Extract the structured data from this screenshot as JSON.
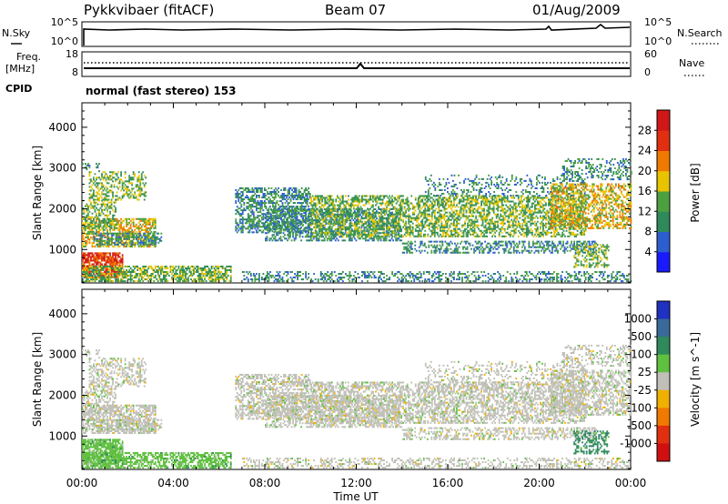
{
  "header": {
    "radar": "Pykkvibaer (fitACF)",
    "beam": "Beam 07",
    "date": "01/Aug/2009"
  },
  "aux_panels": {
    "nsky_label": "N.Sky",
    "nsearch_label": "N.Search",
    "noise_ticks": [
      "10^5",
      "10^0"
    ],
    "freq_label_1": "Freq.",
    "freq_label_2": "[MHz]",
    "freq_ticks": [
      "18",
      "8"
    ],
    "nave_label": "Nave",
    "nave_ticks": [
      "60",
      "0"
    ],
    "cpid_label": "CPID",
    "cpid_text": "normal (fast stereo) 153"
  },
  "chart_data": [
    {
      "type": "heatmap",
      "title": "",
      "xlabel": "Time UT",
      "ylabel": "Slant Range [km]",
      "x_ticks": [
        "00:00",
        "04:00",
        "08:00",
        "12:00",
        "16:00",
        "20:00",
        "00:00"
      ],
      "y_ticks": [
        1000,
        2000,
        3000,
        4000
      ],
      "ylim": [
        180,
        4600
      ],
      "colorbar": {
        "label": "Power [dB]",
        "ticks": [
          4,
          8,
          12,
          16,
          20,
          24,
          28
        ],
        "colors": [
          "#1a1aff",
          "#2c5ed0",
          "#2e8a5a",
          "#4ca040",
          "#e8c400",
          "#f07a00",
          "#e03010",
          "#d01818"
        ]
      }
    },
    {
      "type": "heatmap",
      "title": "",
      "xlabel": "Time UT",
      "ylabel": "Slant Range [km]",
      "x_ticks": [
        "00:00",
        "04:00",
        "08:00",
        "12:00",
        "16:00",
        "20:00",
        "00:00"
      ],
      "y_ticks": [
        1000,
        2000,
        3000,
        4000
      ],
      "ylim": [
        180,
        4600
      ],
      "colorbar": {
        "label": "Velocity [m s^-1]",
        "ticks": [
          "1000",
          "500",
          "100",
          "25",
          "-25",
          "-100",
          "-500",
          "-1000"
        ],
        "colors": [
          "#2030c0",
          "#3a6a9a",
          "#2e8a5a",
          "#60c040",
          "#c0c0b8",
          "#f0b000",
          "#f07a00",
          "#e03010",
          "#d01010"
        ]
      }
    }
  ]
}
